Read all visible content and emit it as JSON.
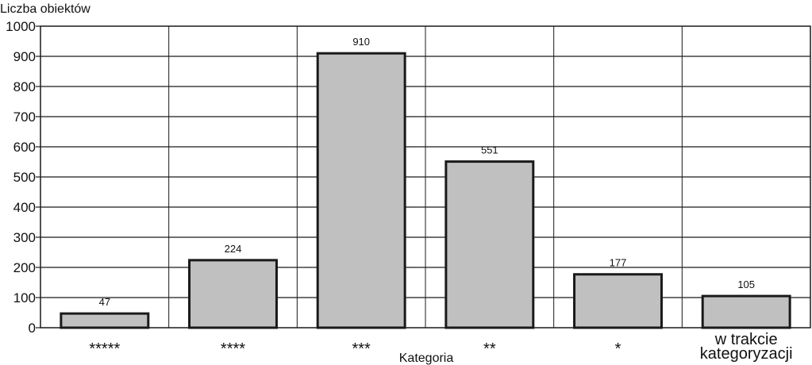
{
  "chart_data": {
    "type": "bar",
    "ylabel": "Liczba obiektów",
    "xlabel": "Kategoria",
    "categories": [
      [
        "*****"
      ],
      [
        "****"
      ],
      [
        "***"
      ],
      [
        "**"
      ],
      [
        "*"
      ],
      [
        "w trakcie",
        "kategoryzacji"
      ]
    ],
    "values": [
      47,
      224,
      910,
      551,
      177,
      105
    ],
    "ylim": [
      0,
      1000
    ],
    "yticks": [
      0,
      100,
      200,
      300,
      400,
      500,
      600,
      700,
      800,
      900,
      1000
    ],
    "grid": true,
    "legend": "none",
    "colors": {
      "bar_fill": "#c0c0c0",
      "bar_stroke": "#1a1a1a",
      "grid": "#1a1a1a"
    }
  }
}
